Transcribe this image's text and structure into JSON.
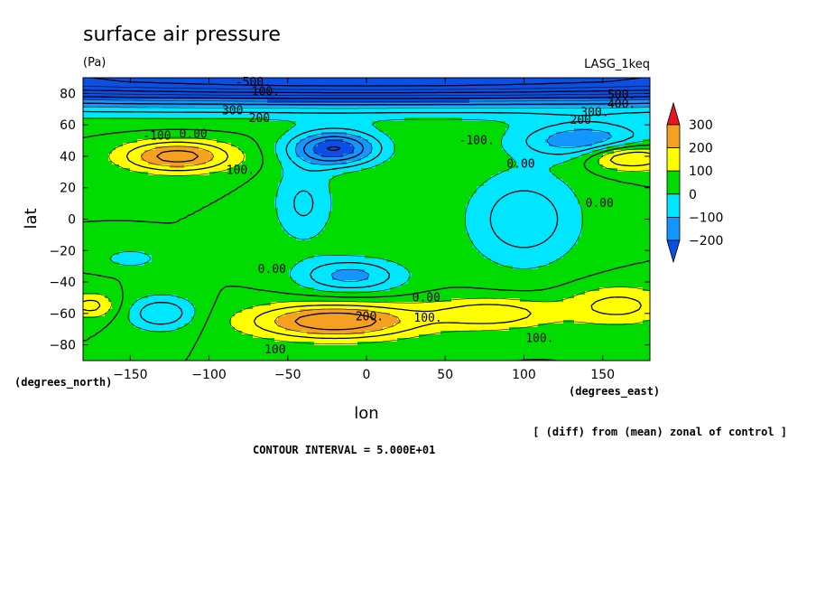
{
  "chart_data": {
    "type": "heatmap",
    "title": "surface air pressure",
    "subtitle": "(Pa)",
    "model": "LASG_1keq",
    "xlabel": "lon",
    "ylabel": "lat",
    "x_units": "(degrees_east)",
    "y_units": "(degrees_north)",
    "xlim": [
      -180,
      180
    ],
    "ylim": [
      -90,
      90
    ],
    "x_ticks": [
      -150,
      -100,
      -50,
      0,
      50,
      100,
      150
    ],
    "y_ticks": [
      80,
      60,
      40,
      20,
      0,
      -20,
      -40,
      -60,
      -80
    ],
    "x_tick_labels": [
      "−150",
      "−100",
      "−50",
      "0",
      "50",
      "100",
      "150"
    ],
    "y_tick_labels": [
      "80",
      "60",
      "40",
      "20",
      "0",
      "−20",
      "−40",
      "−60",
      "−80"
    ],
    "colorbar": {
      "levels": [
        300,
        200,
        100,
        0,
        -100,
        -200
      ],
      "labels": [
        "300",
        "200",
        "100",
        "0",
        "−100",
        "−200"
      ],
      "bins": [
        {
          "range": [
            250,
            1000
          ],
          "color": "#e8141e"
        },
        {
          "range": [
            150,
            250
          ],
          "color": "#f5a020"
        },
        {
          "range": [
            50,
            150
          ],
          "color": "#ffff00"
        },
        {
          "range": [
            -50,
            50
          ],
          "color": "#00dc00"
        },
        {
          "range": [
            -150,
            -50
          ],
          "color": "#00e6ff"
        },
        {
          "range": [
            -250,
            -150
          ],
          "color": "#1496ff"
        },
        {
          "range": [
            -1000,
            -250
          ],
          "color": "#0a50e6"
        }
      ]
    },
    "features": [
      {
        "type": "band",
        "lat": 90,
        "lon": 0,
        "sx": 400,
        "sy": 12,
        "amp": -550
      },
      {
        "type": "blob",
        "lat": 45,
        "lon": -20,
        "sx": 20,
        "sy": 8,
        "amp": -300
      },
      {
        "type": "blob",
        "lat": 50,
        "lon": 140,
        "sx": 30,
        "sy": 8,
        "amp": -200
      },
      {
        "type": "blob",
        "lat": 40,
        "lon": -120,
        "sx": 25,
        "sy": 7,
        "amp": 230
      },
      {
        "type": "blob",
        "lat": 40,
        "lon": 160,
        "sx": 16,
        "sy": 6,
        "amp": 170
      },
      {
        "type": "blob",
        "lat": 40,
        "lon": 180,
        "sx": 12,
        "sy": 6,
        "amp": 80
      },
      {
        "type": "blob",
        "lat": 0,
        "lon": 100,
        "sx": 26,
        "sy": 22,
        "amp": -140
      },
      {
        "type": "blob",
        "lat": -36,
        "lon": -10,
        "sx": 24,
        "sy": 8,
        "amp": -170
      },
      {
        "type": "blob",
        "lat": 10,
        "lon": -40,
        "sx": 14,
        "sy": 18,
        "amp": -110
      },
      {
        "type": "blob",
        "lat": -60,
        "lon": -130,
        "sx": 16,
        "sy": 8,
        "amp": -150
      },
      {
        "type": "blob",
        "lat": -25,
        "lon": -150,
        "sx": 12,
        "sy": 4,
        "amp": -90
      },
      {
        "type": "blob",
        "lat": -65,
        "lon": -20,
        "sx": 38,
        "sy": 8,
        "amp": 250
      },
      {
        "type": "blob",
        "lat": -60,
        "lon": 80,
        "sx": 28,
        "sy": 7,
        "amp": 140
      },
      {
        "type": "blob",
        "lat": -55,
        "lon": 160,
        "sx": 24,
        "sy": 9,
        "amp": 120
      },
      {
        "type": "blob",
        "lat": -55,
        "lon": -175,
        "sx": 12,
        "sy": 6,
        "amp": 120
      }
    ],
    "contour_labels": [
      {
        "text": "-500.",
        "lon": -72,
        "lat": 87
      },
      {
        "text": "100.",
        "lon": -64,
        "lat": 81
      },
      {
        "text": "300",
        "lon": -85,
        "lat": 69
      },
      {
        "text": "200",
        "lon": -68,
        "lat": 64
      },
      {
        "text": "-100",
        "lon": -133,
        "lat": 53
      },
      {
        "text": "0.00",
        "lon": -110,
        "lat": 54
      },
      {
        "text": "-100.",
        "lon": 70,
        "lat": 50
      },
      {
        "text": "0.00",
        "lon": 98,
        "lat": 35
      },
      {
        "text": "100.",
        "lon": -80,
        "lat": 31
      },
      {
        "text": "0.00",
        "lon": 148,
        "lat": 10
      },
      {
        "text": "0.00",
        "lon": -60,
        "lat": -32
      },
      {
        "text": "0.00",
        "lon": 38,
        "lat": -50
      },
      {
        "text": "200.",
        "lon": 2,
        "lat": -62
      },
      {
        "text": "100.",
        "lon": 39,
        "lat": -63
      },
      {
        "text": "100.",
        "lon": 110,
        "lat": -76
      },
      {
        "text": "100",
        "lon": -58,
        "lat": -83
      },
      {
        "text": "500.",
        "lon": 162,
        "lat": 79
      },
      {
        "text": "400.",
        "lon": 162,
        "lat": 73
      },
      {
        "text": "300.",
        "lon": 145,
        "lat": 68
      },
      {
        "text": "200",
        "lon": 136,
        "lat": 63
      }
    ],
    "note": "[ (diff) from (mean) zonal of control ]",
    "contour_interval": "CONTOUR INTERVAL = 5.000E+01"
  }
}
